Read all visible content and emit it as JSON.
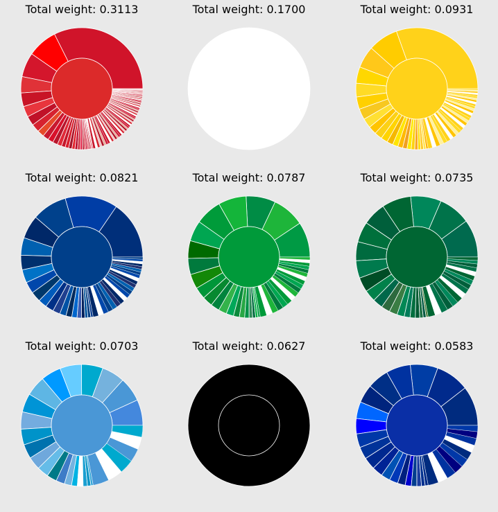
{
  "chart_data": [
    {
      "type": "pie",
      "subtype": "nested-donut",
      "title": "Total weight: 0.3113",
      "center_color": "#dc2a2a",
      "ring_colors": [
        "#d0142a",
        "#ff0000",
        "#d4162c",
        "#e03238",
        "#c81426",
        "#e8353d",
        "#c01228",
        "#d62230",
        "#e64a2a",
        "#c8192f",
        "#d8112b",
        "#b8162c",
        "#e02a38",
        "#c5172b",
        "#d9202e",
        "#a8142a",
        "#e2252f",
        "#bb1030",
        "#cc2234",
        "#e0143a",
        "#b81a30",
        "#d62030",
        "#c8163a",
        "#e4283a",
        "#ba1a2e",
        "#d0142e",
        "#e83040",
        "#b51228"
      ],
      "ring_values": [
        0.45,
        0.11,
        0.09,
        0.06,
        0.05,
        0.04,
        0.035,
        0.03,
        0.025,
        0.022,
        0.02,
        0.018,
        0.016,
        0.014,
        0.013,
        0.012,
        0.011,
        0.01,
        0.009,
        0.008,
        0.007,
        0.006,
        0.006,
        0.005,
        0.005,
        0.004,
        0.004,
        0.003
      ],
      "small_slices": 60,
      "small_colors": [
        "#c8142a",
        "#ffffff",
        "#d4232f",
        "#f0c8c8",
        "#b01024",
        "#e6b0a0",
        "#d01838"
      ]
    },
    {
      "type": "pie",
      "subtype": "nested-donut",
      "title": "Total weight: 0.1700",
      "center_color": "#ffffff",
      "ring_colors": [
        "#ffffff"
      ],
      "ring_values": [
        1
      ],
      "small_slices": 0,
      "small_colors": []
    },
    {
      "type": "pie",
      "subtype": "nested-donut",
      "title": "Total weight: 0.0931",
      "center_color": "#ffd21a",
      "ring_colors": [
        "#ffd21a",
        "#ffcc00",
        "#ffc81a",
        "#ffd700",
        "#ffdb26",
        "#ffd000",
        "#f7c820",
        "#ffe033",
        "#ffc400",
        "#fcd116",
        "#ffd400",
        "#f5b800",
        "#ffe500",
        "#ffb900",
        "#f0a020",
        "#ffea00",
        "#fdd20e",
        "#f9a825",
        "#ffdd00",
        "#ffca28",
        "#ffe44d",
        "#ffb300"
      ],
      "ring_values": [
        0.42,
        0.11,
        0.08,
        0.06,
        0.05,
        0.045,
        0.04,
        0.035,
        0.03,
        0.028,
        0.025,
        0.022,
        0.02,
        0.018,
        0.016,
        0.015,
        0.013,
        0.012,
        0.01,
        0.01,
        0.009,
        0.008
      ],
      "small_slices": 30,
      "small_colors": [
        "#ffd21a",
        "#ffffff",
        "#ffc400",
        "#fff0a0",
        "#ffdb26"
      ]
    },
    {
      "type": "pie",
      "subtype": "nested-donut",
      "title": "Total weight: 0.0821",
      "center_color": "#003f8a",
      "ring_colors": [
        "#002f7a",
        "#003da5",
        "#00418c",
        "#002868",
        "#0060b0",
        "#00306e",
        "#0072c6",
        "#0047ab",
        "#00386b",
        "#005bbb",
        "#003087",
        "#1f3f8f",
        "#0052a5",
        "#002a5c",
        "#0066cc",
        "#3a5cb0",
        "#00205b",
        "#00539b",
        "#003b80",
        "#0a3d91"
      ],
      "ring_values": [
        0.2,
        0.18,
        0.12,
        0.08,
        0.06,
        0.05,
        0.045,
        0.04,
        0.035,
        0.03,
        0.028,
        0.025,
        0.022,
        0.02,
        0.018,
        0.015,
        0.012,
        0.01,
        0.01,
        0.008
      ],
      "small_slices": 22,
      "small_colors": [
        "#002868",
        "#ffffff",
        "#0047ab",
        "#003f8a",
        "#0060b0",
        "#1f2f6f"
      ]
    },
    {
      "type": "pie",
      "subtype": "nested-donut",
      "title": "Total weight: 0.0787",
      "center_color": "#009a3a",
      "ring_colors": [
        "#009a44",
        "#1eb53a",
        "#008c45",
        "#14b53a",
        "#009b3a",
        "#00a651",
        "#006a00",
        "#007a3d",
        "#138808",
        "#009639",
        "#078930",
        "#00843d",
        "#33b34a",
        "#00a859",
        "#0b8a3c",
        "#28a745",
        "#009246",
        "#2e8b57",
        "#006b3f",
        "#00b140",
        "#12a150"
      ],
      "ring_values": [
        0.12,
        0.11,
        0.1,
        0.095,
        0.09,
        0.07,
        0.06,
        0.055,
        0.05,
        0.04,
        0.035,
        0.03,
        0.028,
        0.025,
        0.02,
        0.018,
        0.015,
        0.012,
        0.01,
        0.008,
        0.008
      ],
      "small_slices": 18,
      "small_colors": [
        "#009a3a",
        "#ffffff",
        "#1eb53a",
        "#007a3d",
        "#00a651"
      ]
    },
    {
      "type": "pie",
      "subtype": "nested-donut",
      "title": "Total weight: 0.0735",
      "center_color": "#006633",
      "ring_colors": [
        "#006a4e",
        "#00734a",
        "#00875a",
        "#006633",
        "#005f3b",
        "#00703c",
        "#006b3f",
        "#007a4d",
        "#004d26",
        "#00814a",
        "#00684a",
        "#2d6a3e",
        "#3a7d44",
        "#008855",
        "#007c59",
        "#006f3f",
        "#005a32",
        "#1e7145",
        "#00573f",
        "#4a7c3a"
      ],
      "ring_values": [
        0.13,
        0.11,
        0.105,
        0.1,
        0.08,
        0.07,
        0.065,
        0.06,
        0.05,
        0.04,
        0.035,
        0.03,
        0.028,
        0.025,
        0.02,
        0.018,
        0.015,
        0.012,
        0.01,
        0.007
      ],
      "small_slices": 16,
      "small_colors": [
        "#006633",
        "#ffffff",
        "#00734a",
        "#005f3b",
        "#00875a"
      ]
    },
    {
      "type": "pie",
      "subtype": "nested-donut",
      "title": "Total weight: 0.0703",
      "center_color": "#4a97d6",
      "ring_colors": [
        "#4488dd",
        "#4a97d6",
        "#75b2dd",
        "#00a9ce",
        "#66ccff",
        "#0099ff",
        "#5eb6e4",
        "#0094d6",
        "#74acdf",
        "#0093c9",
        "#0072ae",
        "#6fa8dc",
        "#65bce8",
        "#007a87",
        "#3e7cc7",
        "#74b3e0",
        "#00b2e3",
        "#ffffff",
        "#1a9fd1",
        "#0d96c6",
        "#33a6d8"
      ],
      "ring_values": [
        0.09,
        0.085,
        0.08,
        0.075,
        0.075,
        0.07,
        0.07,
        0.065,
        0.06,
        0.055,
        0.05,
        0.045,
        0.04,
        0.035,
        0.03,
        0.025,
        0.02,
        0.02,
        0.015,
        0.012,
        0.008
      ],
      "small_slices": 6,
      "small_colors": [
        "#4a97d6",
        "#ffffff",
        "#00a9ce"
      ]
    },
    {
      "type": "pie",
      "subtype": "nested-donut",
      "title": "Total weight: 0.0627",
      "center_color": "#000000",
      "ring_colors": [
        "#000000"
      ],
      "ring_values": [
        1
      ],
      "small_slices": 0,
      "small_colors": []
    },
    {
      "type": "pie",
      "subtype": "nested-donut",
      "title": "Total weight: 0.0583",
      "center_color": "#0a2fa6",
      "ring_colors": [
        "#002b7f",
        "#012a8c",
        "#003da5",
        "#0032a0",
        "#002f86",
        "#00247d",
        "#0066ff",
        "#0000ff",
        "#0038a8",
        "#003399",
        "#00288f",
        "#002395",
        "#0052b4",
        "#0038b8",
        "#001f7e",
        "#0000cd",
        "#003c8f",
        "#1a3c9e",
        "#00308f",
        "#002b88"
      ],
      "ring_values": [
        0.13,
        0.11,
        0.09,
        0.08,
        0.07,
        0.06,
        0.055,
        0.05,
        0.045,
        0.04,
        0.04,
        0.035,
        0.03,
        0.028,
        0.025,
        0.02,
        0.018,
        0.015,
        0.012,
        0.01
      ],
      "small_slices": 10,
      "small_colors": [
        "#002b7f",
        "#ffffff",
        "#0032a0",
        "#000080",
        "#0038a8"
      ]
    }
  ]
}
